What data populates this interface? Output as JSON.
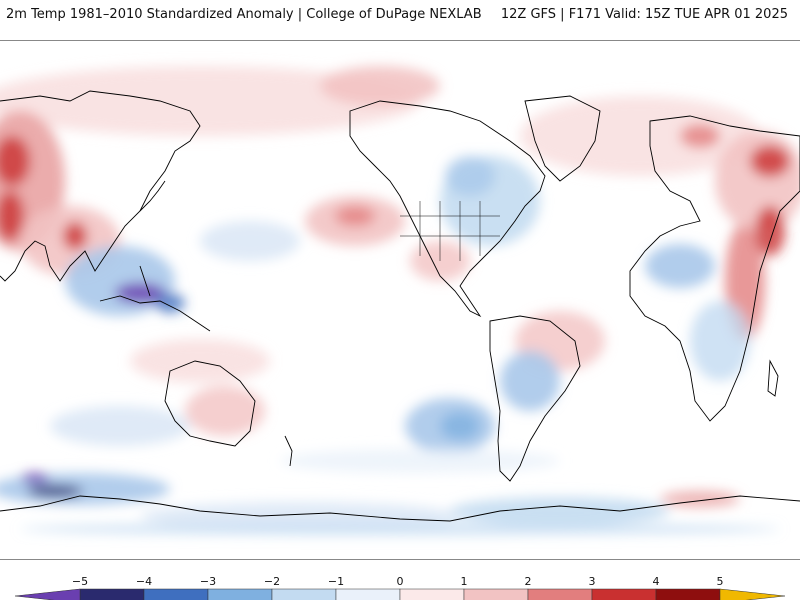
{
  "header": {
    "title": "2m Temp 1981–2010 Standardized Anomaly | College of DuPage NEXLAB",
    "run_info": "12Z GFS | F171 Valid: 15Z TUE APR 01 2025"
  },
  "colorbar": {
    "ticks": [
      "−5",
      "−4",
      "−3",
      "−2",
      "−1",
      "0",
      "1",
      "2",
      "3",
      "4",
      "5"
    ],
    "colors": [
      "#2a2a6e",
      "#3f6fbf",
      "#7fb0e0",
      "#c3dbf1",
      "#eaf1fa",
      "#fbe9e9",
      "#f2c3c3",
      "#e27e7e",
      "#c93030",
      "#8e0e0e"
    ],
    "min_color": "#6a3fb0",
    "max_color": "#f0b800"
  }
}
